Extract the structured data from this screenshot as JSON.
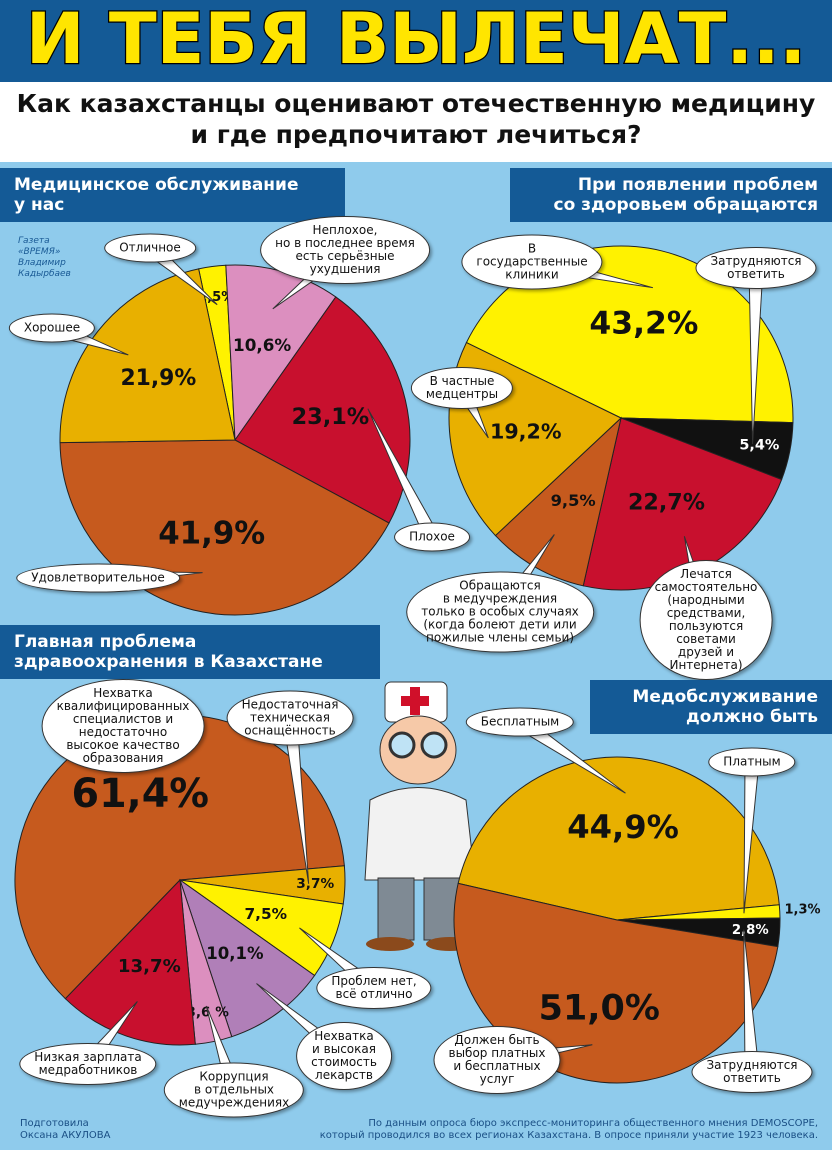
{
  "header": {
    "title": "И ТЕБЯ ВЫЛЕЧАТ...",
    "subtitle": "Как казахстанцы оценивают отечественную медицину\nи где предпочитают лечиться?"
  },
  "credit": "Газета\n«ВРЕМЯ»\nВладимир\nКадырбаев",
  "footer": {
    "author": "Подготовила\nОксана АКУЛОВА",
    "source": "По данным опроса бюро экспресс-мониторинга общественного мнения DEMOSCOPE,\nкоторый проводился во всех регионах Казахстана. В опросе приняли участие 1923 человека."
  },
  "chart_data": [
    {
      "type": "pie",
      "title": "Медицинское обслуживание\nу нас",
      "categories": [
        "Отличное",
        "Неплохое,\nно в последнее время\nесть серьёзные\nухудшения",
        "Плохое",
        "Удовлетворительное",
        "Хорошее"
      ],
      "values": [
        2.5,
        10.6,
        23.1,
        41.9,
        21.9
      ],
      "value_labels": [
        "2,5%",
        "10,6%",
        "23,1%",
        "41,9%",
        "21,9%"
      ],
      "colors": [
        "#fff200",
        "#dc8fbf",
        "#c8102e",
        "#c65a1e",
        "#e8b000"
      ]
    },
    {
      "type": "pie",
      "title": "При появлении проблем\nсо здоровьем обращаются",
      "categories": [
        "В\nгосударственные\nклиники",
        "Затрудняются\nответить",
        "Лечатся\nсамостоятельно\n(народными средствами,\nпользуются советами\nдрузей и Интернета)",
        "Обращаются\nв медучреждения\nтолько в особых случаях\n(когда болеют дети или\nпожилые члены семьи)",
        "В частные\nмедцентры"
      ],
      "values": [
        43.2,
        5.4,
        22.7,
        9.5,
        19.2
      ],
      "value_labels": [
        "43,2%",
        "5,4%",
        "22,7%",
        "9,5%",
        "19,2%"
      ],
      "colors": [
        "#fff200",
        "#111111",
        "#c8102e",
        "#c65a1e",
        "#e8b000"
      ]
    },
    {
      "type": "pie",
      "title": "Главная проблема\nздравоохранения в Казахстане",
      "categories": [
        "Нехватка\nквалифицированных\nспециалистов и\nнедостаточно\nвысокое качество\nобразования",
        "Недостаточная\nтехническая\nоснащённость",
        "Проблем нет,\nвсё отлично",
        "Нехватка\nи высокая\nстоимость\nлекарств",
        "Коррупция\nв отдельных\nмедучреждениях",
        "Низкая зарплата\nмедработников"
      ],
      "values": [
        61.4,
        3.7,
        7.5,
        10.1,
        3.6,
        13.7
      ],
      "value_labels": [
        "61,4%",
        "3,7%",
        "7,5%",
        "10,1%",
        "3,6 %",
        "13,7%"
      ],
      "colors": [
        "#c65a1e",
        "#e8b000",
        "#fff200",
        "#b07fb8",
        "#dc8fbf",
        "#c8102e"
      ]
    },
    {
      "type": "pie",
      "title": "Медобслуживание\nдолжно быть",
      "categories": [
        "Бесплатным",
        "Платным",
        "Затрудняются\nответить",
        "Должен быть\nвыбор платных\nи бесплатных\nуслуг"
      ],
      "values": [
        44.9,
        1.3,
        2.8,
        51.0
      ],
      "value_labels": [
        "44,9%",
        "1,3%",
        "2,8%",
        "51,0%"
      ],
      "colors": [
        "#e8b000",
        "#fff200",
        "#111111",
        "#c65a1e"
      ]
    }
  ]
}
